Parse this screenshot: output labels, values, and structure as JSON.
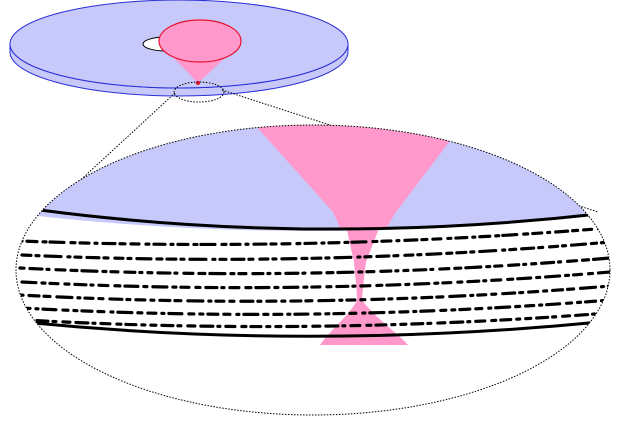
{
  "diagram": {
    "kind": "optical-disc-laser-focus-magnification",
    "colors": {
      "disc_fill": "#c6c9f9",
      "disc_edge": "#2b2fd6",
      "laser_fill": "#ff99cc",
      "laser_edge": "#e8112d",
      "outline": "#000000",
      "background": "#ffffff"
    },
    "parts": [
      "disc",
      "spindle-hole",
      "laser-cone",
      "focus-spot",
      "magnifier-callout",
      "magnified-disc-surface",
      "data-pit-layers",
      "focused-beam"
    ],
    "data_layer_count": 7,
    "pit_rows": 7
  }
}
